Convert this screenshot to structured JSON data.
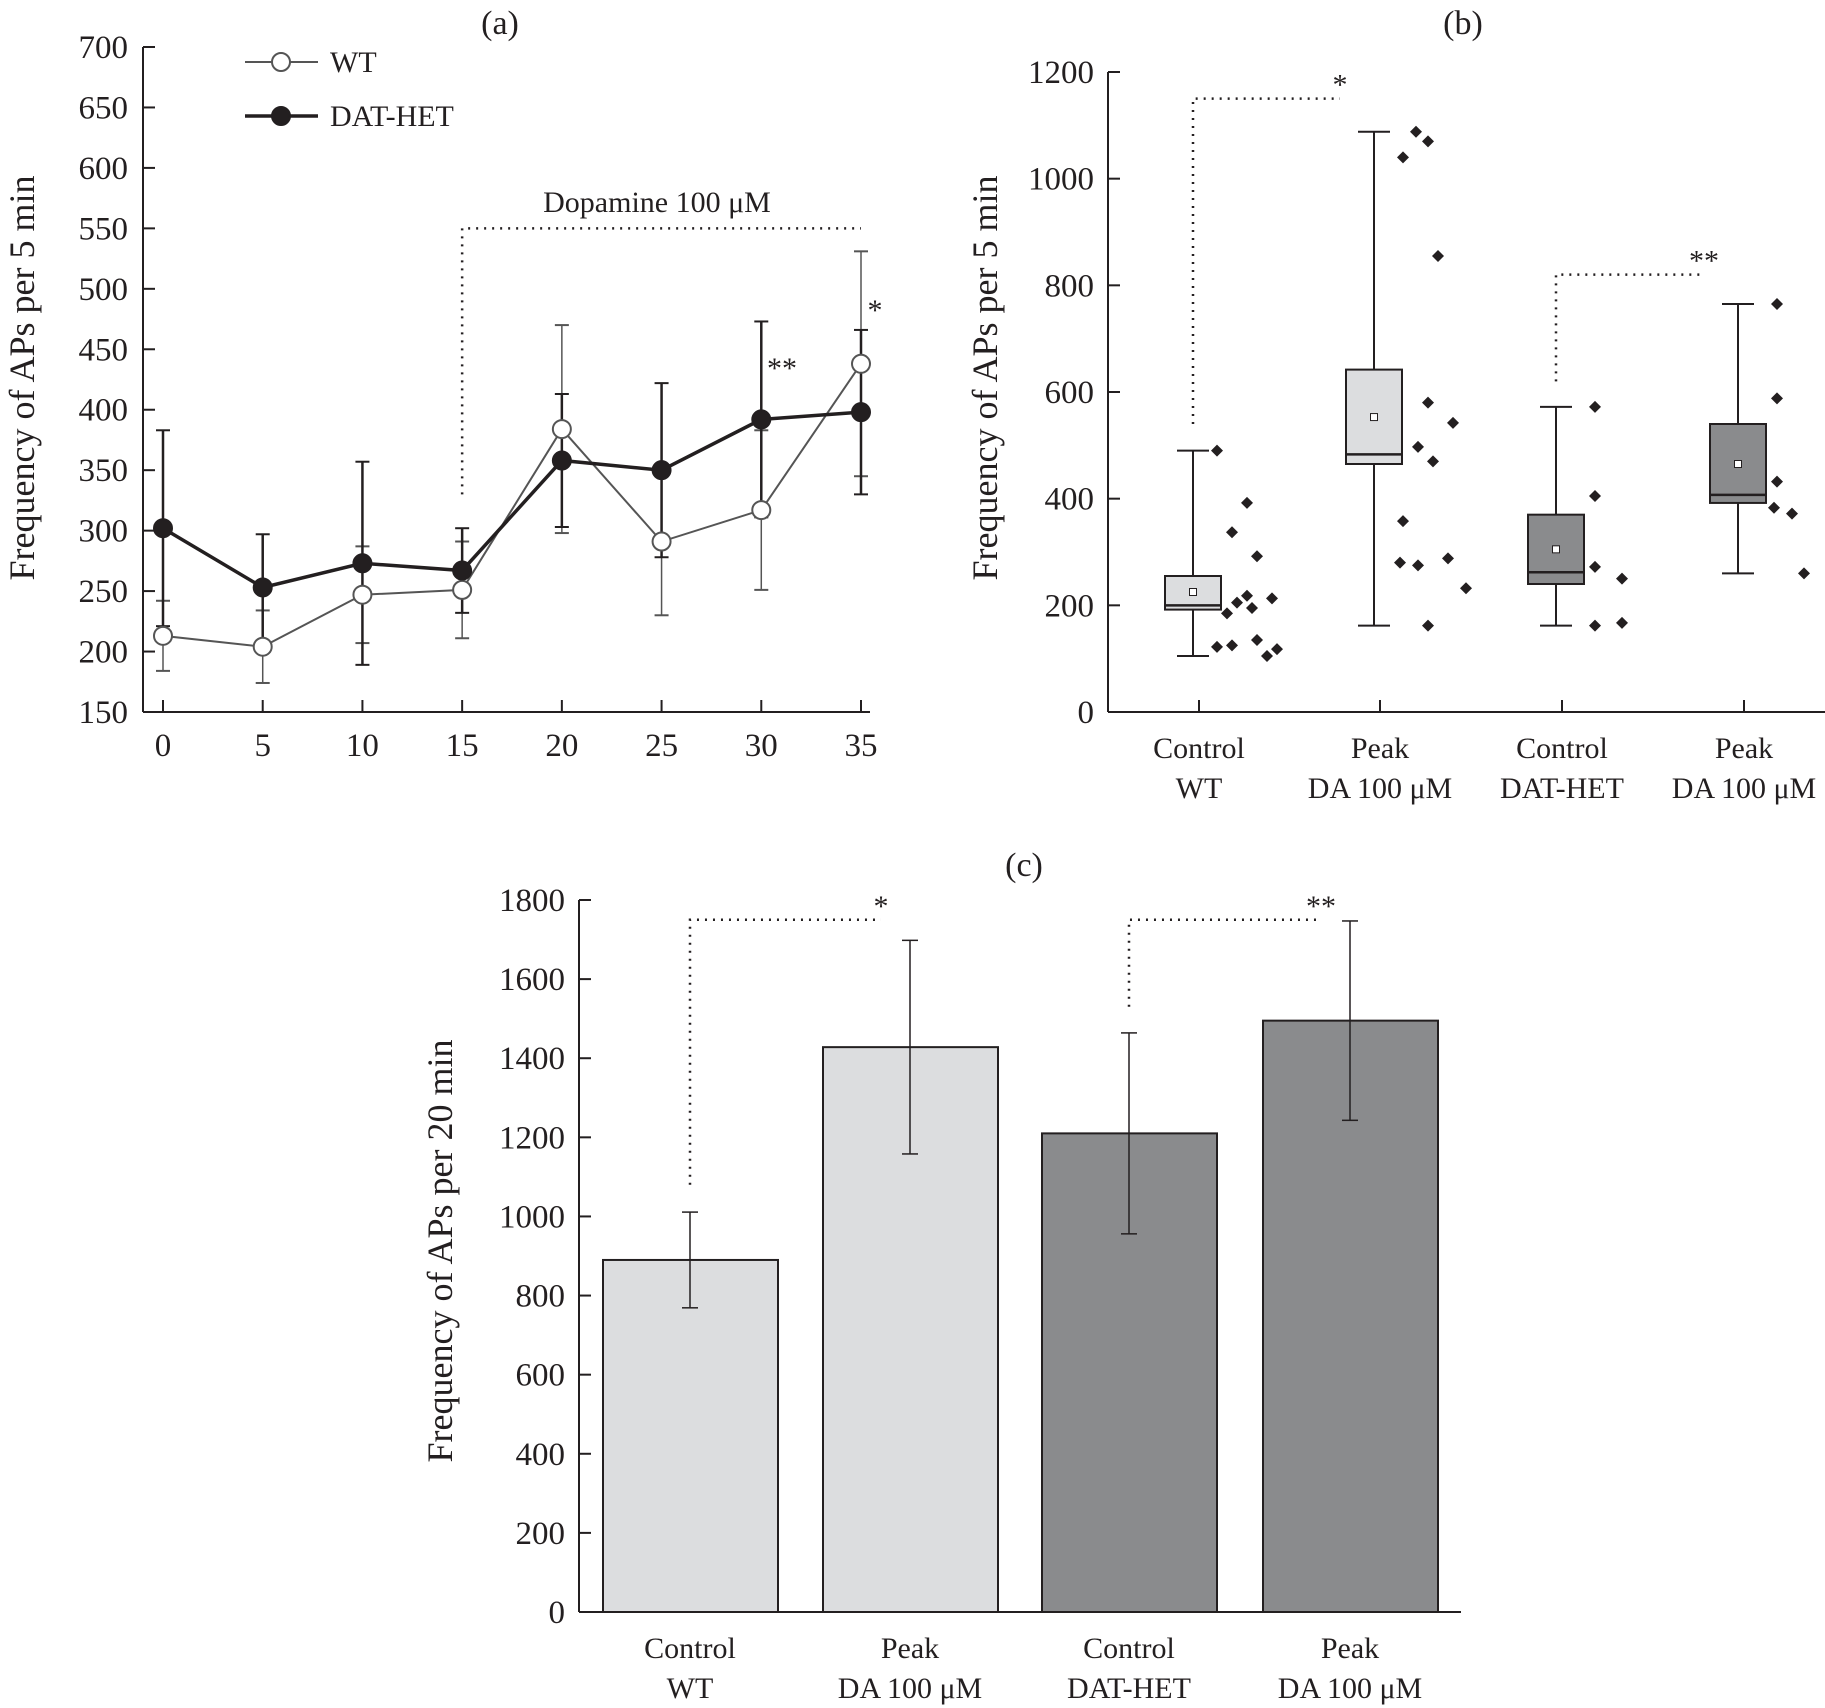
{
  "colors": {
    "ink": "#231f20",
    "wt_line": "#555555",
    "light_fill": "#dcdddf",
    "dark_fill": "#8a8b8d"
  },
  "chart_data": [
    {
      "panel": "(a)",
      "type": "line",
      "ylabel": "Frequency of APs per 5 min",
      "xlabel": "",
      "x": [
        0,
        5,
        10,
        15,
        20,
        25,
        30,
        35
      ],
      "xlim": [
        0,
        35
      ],
      "ylim": [
        150,
        700
      ],
      "yticks": [
        150,
        200,
        250,
        300,
        350,
        400,
        450,
        500,
        550,
        600,
        650,
        700
      ],
      "grid": false,
      "legend": "top-left",
      "series": [
        {
          "name": "WT",
          "marker": "open-circle",
          "values": [
            213,
            204,
            247,
            251,
            384,
            291,
            317,
            438
          ],
          "errors": [
            29,
            30,
            40,
            40,
            86,
            61,
            66,
            93
          ]
        },
        {
          "name": "DAT-HET",
          "marker": "filled-circle",
          "values": [
            302,
            253,
            273,
            267,
            358,
            350,
            392,
            398
          ],
          "errors": [
            81,
            44,
            84,
            35,
            55,
            72,
            81,
            68
          ]
        }
      ],
      "annotations": [
        {
          "text": "Dopamine 100 μM",
          "from_x": 15,
          "to_x": 35,
          "y": 550
        },
        {
          "text": "**",
          "x": 30,
          "y": 440
        },
        {
          "text": "*",
          "x": 35,
          "y": 535
        }
      ]
    },
    {
      "panel": "(b)",
      "type": "box",
      "ylabel": "Frequency of APs per 5 min",
      "ylim": [
        0,
        1200
      ],
      "yticks": [
        0,
        200,
        400,
        600,
        800,
        1000,
        1200
      ],
      "grid": false,
      "categories": [
        [
          "Control",
          "WT"
        ],
        [
          "Peak",
          "DA 100 μM"
        ],
        [
          "Control",
          "DAT-HET"
        ],
        [
          "Peak",
          "DA 100 μM"
        ]
      ],
      "boxes": [
        {
          "fill": "light",
          "min": 105,
          "q1": 192,
          "median": 200,
          "q3": 255,
          "max": 490,
          "mean": 225,
          "points": [
            490,
            392,
            337,
            292,
            218,
            213,
            205,
            195,
            185,
            135,
            125,
            122,
            118,
            105
          ]
        },
        {
          "fill": "light",
          "min": 162,
          "q1": 465,
          "median": 483,
          "q3": 642,
          "max": 1088,
          "mean": 553,
          "points": [
            1088,
            1070,
            1040,
            855,
            580,
            542,
            497,
            470,
            358,
            288,
            280,
            275,
            232,
            162
          ]
        },
        {
          "fill": "dark",
          "min": 162,
          "q1": 240,
          "median": 262,
          "q3": 370,
          "max": 572,
          "mean": 305,
          "points": [
            572,
            405,
            272,
            250,
            162,
            167
          ]
        },
        {
          "fill": "dark",
          "min": 260,
          "q1": 392,
          "median": 407,
          "q3": 540,
          "max": 765,
          "mean": 465,
          "points": [
            765,
            588,
            432,
            383,
            372,
            260
          ]
        }
      ],
      "significance": [
        {
          "text": "*",
          "from": 0,
          "to": 1,
          "y": 1150,
          "start_y": 540
        },
        {
          "text": "**",
          "from": 2,
          "to": 3,
          "y": 820,
          "start_y": 620
        }
      ]
    },
    {
      "panel": "(c)",
      "type": "bar",
      "ylabel": "Frequency of APs per 20 min",
      "ylim": [
        0,
        1800
      ],
      "yticks": [
        0,
        200,
        400,
        600,
        800,
        1000,
        1200,
        1400,
        1600,
        1800
      ],
      "grid": false,
      "categories": [
        [
          "Control",
          "WT"
        ],
        [
          "Peak",
          "DA 100 μM"
        ],
        [
          "Control",
          "DAT-HET"
        ],
        [
          "Peak",
          "DA 100 μM"
        ]
      ],
      "values": [
        890,
        1428,
        1210,
        1495
      ],
      "errors": [
        121,
        270,
        254,
        252
      ],
      "fills": [
        "light",
        "light",
        "dark",
        "dark"
      ],
      "significance": [
        {
          "text": "*",
          "from": 0,
          "to": 1,
          "y": 1750,
          "start_y": 1080
        },
        {
          "text": "**",
          "from": 2,
          "to": 3,
          "y": 1750,
          "start_y": 1530
        }
      ]
    }
  ]
}
